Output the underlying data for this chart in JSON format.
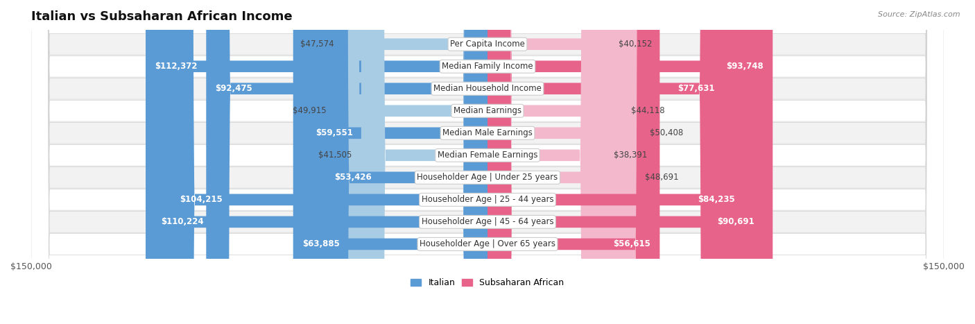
{
  "title": "Italian vs Subsaharan African Income",
  "source": "Source: ZipAtlas.com",
  "categories": [
    "Per Capita Income",
    "Median Family Income",
    "Median Household Income",
    "Median Earnings",
    "Median Male Earnings",
    "Median Female Earnings",
    "Householder Age | Under 25 years",
    "Householder Age | 25 - 44 years",
    "Householder Age | 45 - 64 years",
    "Householder Age | Over 65 years"
  ],
  "italian_values": [
    47574,
    112372,
    92475,
    49915,
    59551,
    41505,
    53426,
    104215,
    110224,
    63885
  ],
  "subsaharan_values": [
    40152,
    93748,
    77631,
    44118,
    50408,
    38391,
    48691,
    84235,
    90691,
    56615
  ],
  "italian_labels": [
    "$47,574",
    "$112,372",
    "$92,475",
    "$49,915",
    "$59,551",
    "$41,505",
    "$53,426",
    "$104,215",
    "$110,224",
    "$63,885"
  ],
  "subsaharan_labels": [
    "$40,152",
    "$93,748",
    "$77,631",
    "$44,118",
    "$50,408",
    "$38,391",
    "$48,691",
    "$84,235",
    "$90,691",
    "$56,615"
  ],
  "italian_light_color": "#a8cce4",
  "italian_dark_color": "#5b9bd5",
  "subsaharan_light_color": "#f4b8cc",
  "subsaharan_dark_color": "#e8638a",
  "max_value": 150000,
  "row_bg_light": "#f2f2f2",
  "row_bg_dark": "#e8e8e8",
  "bar_height": 0.52,
  "title_fontsize": 13,
  "label_fontsize": 8.5,
  "cat_fontsize": 8.5,
  "axis_label_fontsize": 9,
  "legend_fontsize": 9,
  "source_fontsize": 8,
  "inside_threshold": 0.35
}
